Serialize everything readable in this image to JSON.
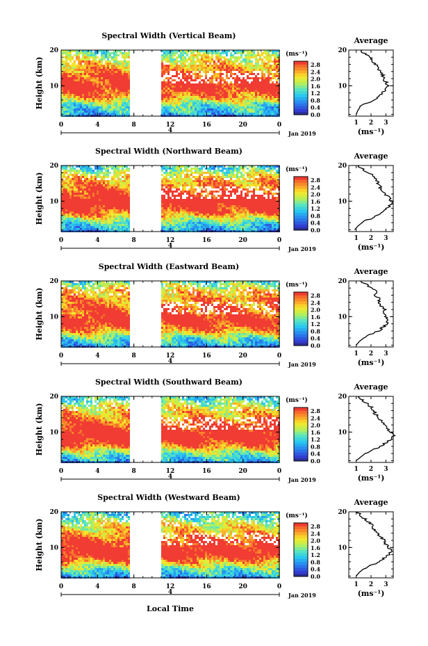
{
  "figure": {
    "ylabel": "Height (km)",
    "xlabel": "Local Time",
    "date_label": "Jan 2019",
    "day_label": "4",
    "colorbar_unit": "(ms⁻¹)",
    "profile_xlabel": "(ms⁻¹)"
  },
  "chart_data": [
    {
      "type": "heatmap",
      "title": "Spectral Width (Vertical Beam)",
      "beam": "vertical",
      "xlabel": "Local Time",
      "ylabel": "Height (km)",
      "x_ticks": [
        "0",
        "4",
        "8",
        "12",
        "16",
        "20",
        "0"
      ],
      "y_ticks": [
        "20",
        "10"
      ],
      "xlim": [
        0,
        24
      ],
      "ylim": [
        1.5,
        20
      ],
      "data_gap_hours": [
        7.6,
        11.0
      ],
      "colorbar": {
        "label": "(ms⁻¹)",
        "ticks": [
          "2.8",
          "2.4",
          "2.0",
          "1.6",
          "1.2",
          "0.8",
          "0.4",
          "0.0"
        ],
        "range": [
          0,
          3.0
        ]
      },
      "average_profile": {
        "title": "Average",
        "xlabel": "(ms⁻¹)",
        "x_ticks": [
          "1",
          "2",
          "3"
        ],
        "xlim": [
          0.5,
          3.5
        ],
        "y_ticks": [
          "20",
          "10"
        ],
        "height_km": [
          2,
          3,
          4,
          5,
          6,
          7,
          8,
          9,
          10,
          11,
          12,
          13,
          14,
          15,
          16,
          17,
          18,
          19,
          20
        ],
        "width_ms": [
          1.0,
          1.1,
          1.25,
          1.6,
          2.2,
          2.6,
          2.8,
          3.0,
          3.2,
          3.0,
          2.9,
          2.8,
          2.6,
          2.4,
          2.3,
          2.1,
          1.9,
          1.6,
          1.3
        ]
      }
    },
    {
      "type": "heatmap",
      "title": "Spectral Width (Northward Beam)",
      "beam": "northward",
      "xlabel": "Local Time",
      "ylabel": "Height (km)",
      "x_ticks": [
        "0",
        "4",
        "8",
        "12",
        "16",
        "20",
        "0"
      ],
      "y_ticks": [
        "20",
        "10"
      ],
      "xlim": [
        0,
        24
      ],
      "ylim": [
        1.5,
        20
      ],
      "data_gap_hours": [
        7.6,
        11.0
      ],
      "colorbar": {
        "label": "(ms⁻¹)",
        "ticks": [
          "2.8",
          "2.4",
          "2.0",
          "1.6",
          "1.2",
          "0.8",
          "0.4",
          "0.0"
        ],
        "range": [
          0,
          3.0
        ]
      },
      "average_profile": {
        "title": "Average",
        "xlabel": "(ms⁻¹)",
        "x_ticks": [
          "1",
          "2",
          "3"
        ],
        "xlim": [
          0.5,
          3.5
        ],
        "y_ticks": [
          "20",
          "10"
        ],
        "height_km": [
          2,
          3,
          4,
          5,
          6,
          7,
          8,
          9,
          10,
          11,
          12,
          13,
          14,
          15,
          16,
          17,
          18,
          19,
          20
        ],
        "width_ms": [
          0.9,
          1.1,
          1.4,
          1.9,
          2.4,
          2.8,
          3.1,
          3.3,
          3.4,
          3.2,
          3.0,
          2.8,
          2.6,
          2.5,
          2.4,
          2.2,
          1.8,
          1.4,
          1.2
        ]
      }
    },
    {
      "type": "heatmap",
      "title": "Spectral Width (Eastward Beam)",
      "beam": "eastward",
      "xlabel": "Local Time",
      "ylabel": "Height (km)",
      "x_ticks": [
        "0",
        "4",
        "8",
        "12",
        "16",
        "20",
        "0"
      ],
      "y_ticks": [
        "20",
        "10"
      ],
      "xlim": [
        0,
        24
      ],
      "ylim": [
        1.5,
        20
      ],
      "data_gap_hours": [
        7.6,
        11.0
      ],
      "colorbar": {
        "label": "(ms⁻¹)",
        "ticks": [
          "2.8",
          "2.4",
          "2.0",
          "1.6",
          "1.2",
          "0.8",
          "0.4",
          "0.0"
        ],
        "range": [
          0,
          3.0
        ]
      },
      "average_profile": {
        "title": "Average",
        "xlabel": "(ms⁻¹)",
        "x_ticks": [
          "1",
          "2",
          "3"
        ],
        "xlim": [
          0.5,
          3.5
        ],
        "y_ticks": [
          "20",
          "10"
        ],
        "height_km": [
          2,
          3,
          4,
          5,
          6,
          7,
          8,
          9,
          10,
          11,
          12,
          13,
          14,
          15,
          16,
          17,
          18,
          19,
          20
        ],
        "width_ms": [
          1.0,
          1.2,
          1.5,
          2.0,
          2.5,
          2.8,
          3.1,
          3.2,
          3.0,
          2.8,
          2.9,
          2.7,
          2.5,
          2.6,
          2.3,
          2.4,
          2.0,
          1.7,
          1.3
        ]
      }
    },
    {
      "type": "heatmap",
      "title": "Spectral Width (Southward Beam)",
      "beam": "southward",
      "xlabel": "Local Time",
      "ylabel": "Height (km)",
      "x_ticks": [
        "0",
        "4",
        "8",
        "12",
        "16",
        "20",
        "0"
      ],
      "y_ticks": [
        "20",
        "10"
      ],
      "xlim": [
        0,
        24
      ],
      "ylim": [
        1.5,
        20
      ],
      "data_gap_hours": [
        7.6,
        11.0
      ],
      "colorbar": {
        "label": "(ms⁻¹)",
        "ticks": [
          "2.8",
          "2.4",
          "2.0",
          "1.6",
          "1.2",
          "0.8",
          "0.4",
          "0.0"
        ],
        "range": [
          0,
          3.0
        ]
      },
      "average_profile": {
        "title": "Average",
        "xlabel": "(ms⁻¹)",
        "x_ticks": [
          "1",
          "2",
          "3"
        ],
        "xlim": [
          0.5,
          3.5
        ],
        "y_ticks": [
          "20",
          "10"
        ],
        "height_km": [
          2,
          3,
          4,
          5,
          6,
          7,
          8,
          9,
          10,
          11,
          12,
          13,
          14,
          15,
          16,
          17,
          18,
          19,
          20
        ],
        "width_ms": [
          1.0,
          1.3,
          1.6,
          2.1,
          2.6,
          3.0,
          3.3,
          3.5,
          3.3,
          3.1,
          3.0,
          2.7,
          2.5,
          2.3,
          2.2,
          2.0,
          1.7,
          1.4,
          1.2
        ]
      }
    },
    {
      "type": "heatmap",
      "title": "Spectral Width (Westward Beam)",
      "beam": "westward",
      "xlabel": "Local Time",
      "ylabel": "Height (km)",
      "x_ticks": [
        "0",
        "4",
        "8",
        "12",
        "16",
        "20",
        "0"
      ],
      "y_ticks": [
        "20",
        "10"
      ],
      "xlim": [
        0,
        24
      ],
      "ylim": [
        1.5,
        20
      ],
      "data_gap_hours": [
        7.6,
        11.0
      ],
      "colorbar": {
        "label": "(ms⁻¹)",
        "ticks": [
          "2.8",
          "2.4",
          "2.0",
          "1.6",
          "1.2",
          "0.8",
          "0.4",
          "0.0"
        ],
        "range": [
          0,
          3.0
        ]
      },
      "average_profile": {
        "title": "Average",
        "xlabel": "(ms⁻¹)",
        "x_ticks": [
          "1",
          "2",
          "3"
        ],
        "xlim": [
          0.5,
          3.5
        ],
        "y_ticks": [
          "20",
          "10"
        ],
        "height_km": [
          2,
          3,
          4,
          5,
          6,
          7,
          8,
          9,
          10,
          11,
          12,
          13,
          14,
          15,
          16,
          17,
          18,
          19,
          20
        ],
        "width_ms": [
          1.0,
          1.2,
          1.5,
          2.0,
          2.5,
          2.9,
          3.2,
          3.4,
          3.2,
          3.0,
          2.9,
          2.6,
          2.4,
          2.2,
          2.1,
          1.9,
          1.6,
          1.3,
          1.1
        ]
      }
    }
  ]
}
